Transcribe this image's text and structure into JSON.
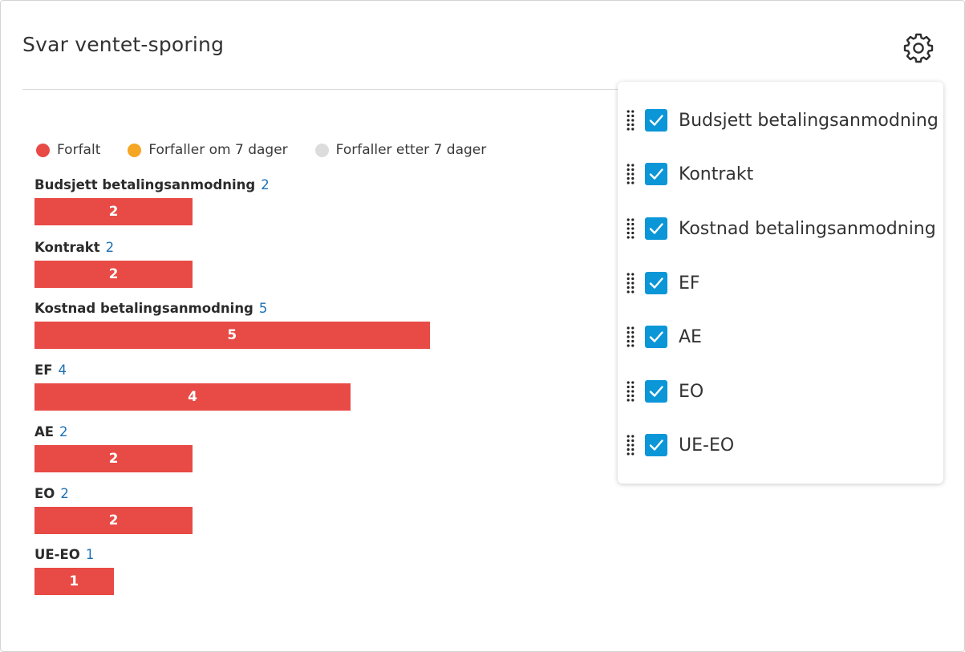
{
  "widget": {
    "title": "Svar ventet-sporing"
  },
  "legend": [
    {
      "label": "Forfalt",
      "color": "#e84a45"
    },
    {
      "label": "Forfaller om 7 dager",
      "color": "#f5a623"
    },
    {
      "label": "Forfaller etter 7 dager",
      "color": "#dcdcdc"
    }
  ],
  "chart_data": {
    "type": "bar",
    "orientation": "horizontal",
    "categories": [
      "Budsjett betalingsanmodning",
      "Kontrakt",
      "Kostnad betalingsanmodning",
      "EF",
      "AE",
      "EO",
      "UE-EO"
    ],
    "series": [
      {
        "name": "Forfalt",
        "color": "#e84a45",
        "values": [
          2,
          2,
          5,
          4,
          2,
          2,
          1
        ]
      },
      {
        "name": "Forfaller om 7 dager",
        "color": "#f5a623",
        "values": [
          0,
          0,
          0,
          0,
          0,
          0,
          0
        ]
      },
      {
        "name": "Forfaller etter 7 dager",
        "color": "#dcdcdc",
        "values": [
          0,
          0,
          0,
          0,
          0,
          0,
          0
        ]
      }
    ],
    "totals": [
      "2",
      "2",
      "5",
      "4",
      "2",
      "2",
      "1"
    ],
    "bar_labels": [
      "2",
      "2",
      "5",
      "4",
      "2",
      "2",
      "1"
    ],
    "legend_position": "top-left"
  },
  "settings_panel": {
    "items": [
      {
        "label": "Budsjett betalingsanmodning",
        "checked": true
      },
      {
        "label": "Kontrakt",
        "checked": true
      },
      {
        "label": "Kostnad betalingsanmodning",
        "checked": true
      },
      {
        "label": "EF",
        "checked": true
      },
      {
        "label": "AE",
        "checked": true
      },
      {
        "label": "EO",
        "checked": true
      },
      {
        "label": "UE-EO",
        "checked": true
      }
    ]
  },
  "icons": {
    "settings": "gear-icon",
    "drag": "drag-handle-icon",
    "check": "checkmark-icon"
  }
}
